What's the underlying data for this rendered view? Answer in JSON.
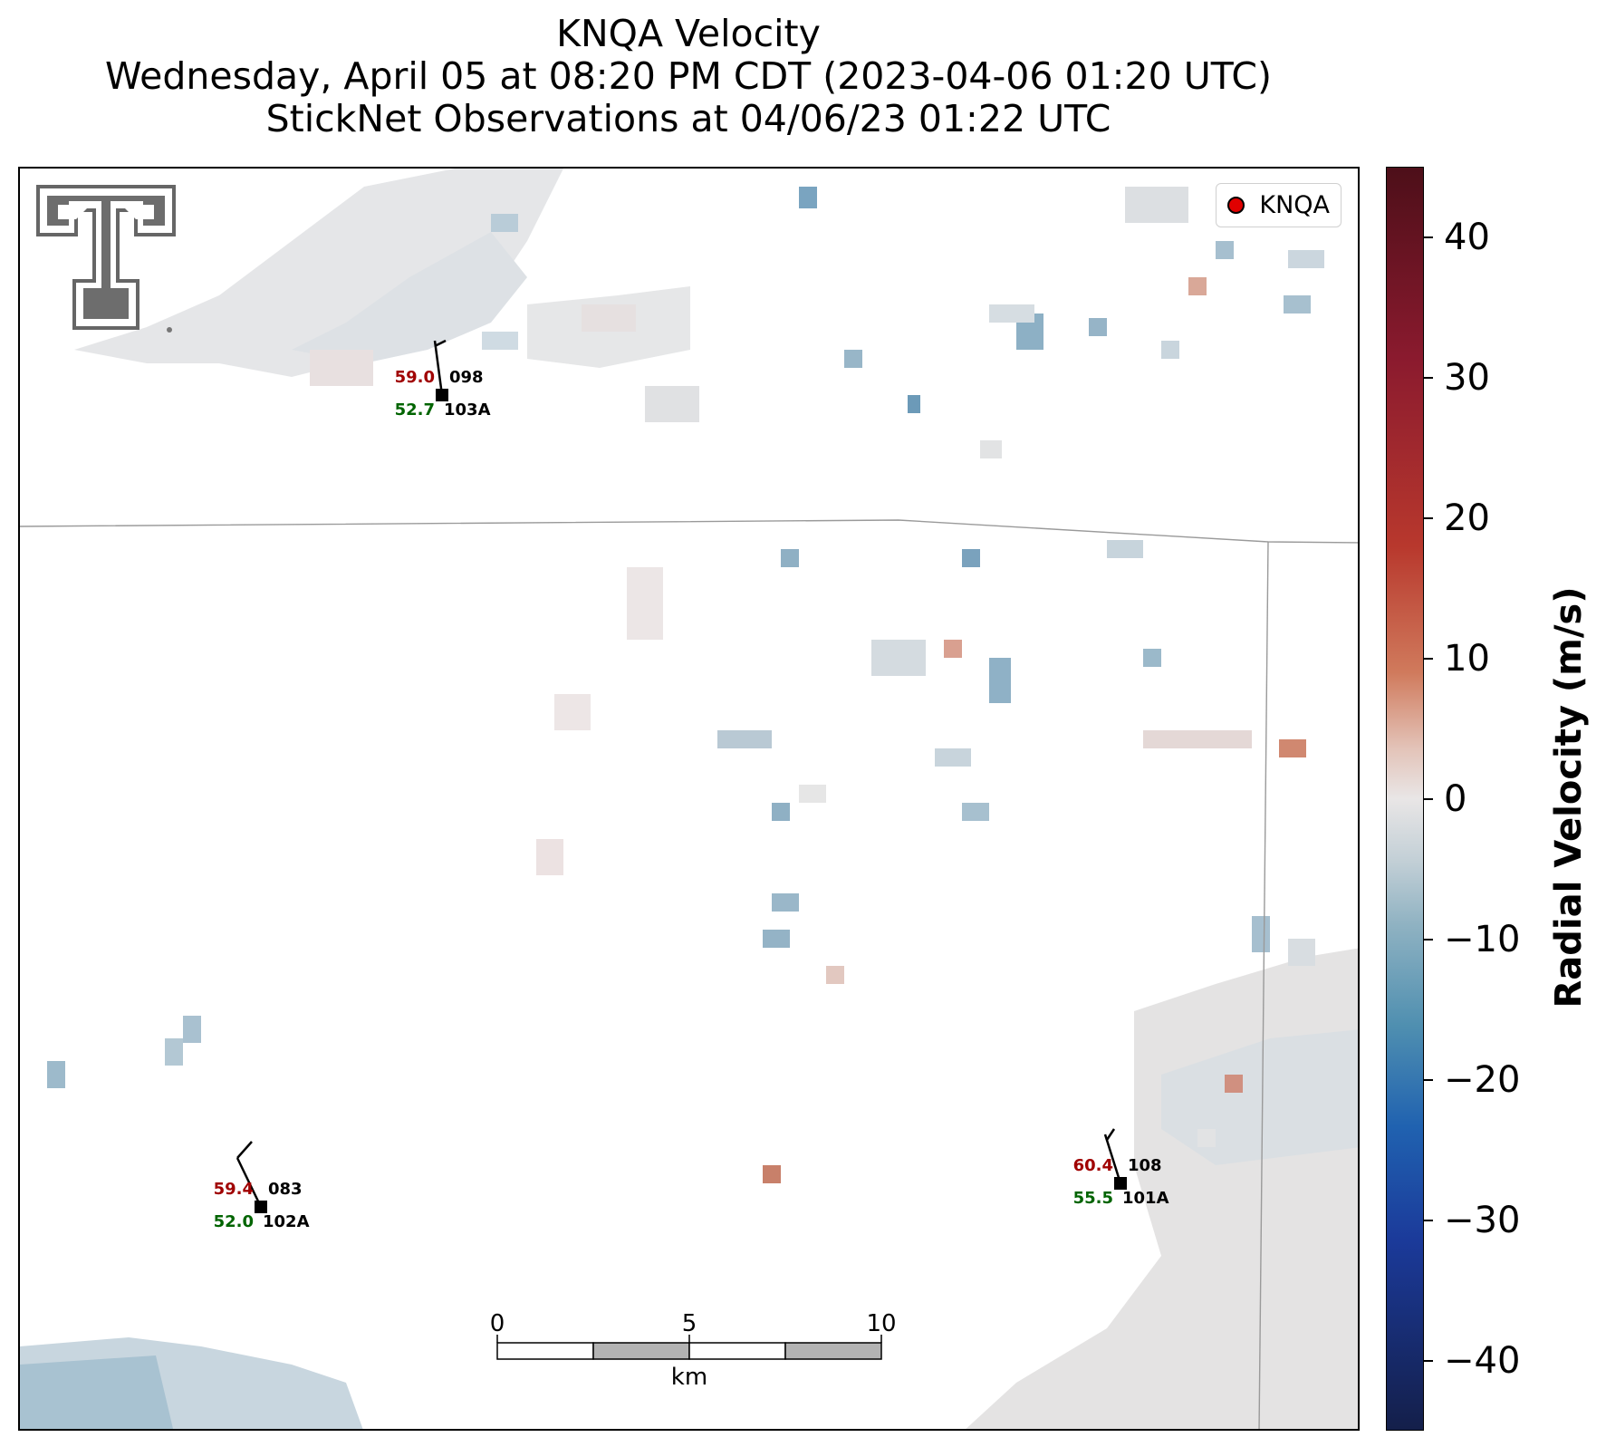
{
  "title": {
    "line1": "KNQA Velocity",
    "line2": "Wednesday, April 05 at 08:20 PM CDT (2023-04-06 01:20 UTC)",
    "line3": "StickNet Observations at 04/06/23 01:22 UTC"
  },
  "legend": {
    "label": "KNQA",
    "marker_color": "#e00000"
  },
  "stations": [
    {
      "id": "103A",
      "temp": "59.0",
      "dew": "52.7",
      "code": "098",
      "temp_color": "#a00000",
      "dew_color": "#006400"
    },
    {
      "id": "102A",
      "temp": "59.4",
      "dew": "52.0",
      "code": "083",
      "temp_color": "#a00000",
      "dew_color": "#006400"
    },
    {
      "id": "101A",
      "temp": "60.4",
      "dew": "55.5",
      "code": "108",
      "temp_color": "#a00000",
      "dew_color": "#006400"
    }
  ],
  "scale_bar": {
    "labels": [
      "0",
      "5",
      "10"
    ],
    "unit": "km"
  },
  "colorbar": {
    "title": "Radial Velocity (m/s)",
    "ticks": [
      "40",
      "30",
      "20",
      "10",
      "0",
      "−10",
      "−20",
      "−30",
      "−40"
    ],
    "range": [
      -45,
      45
    ]
  },
  "logo": {
    "name": "Texas Tech Double T"
  }
}
